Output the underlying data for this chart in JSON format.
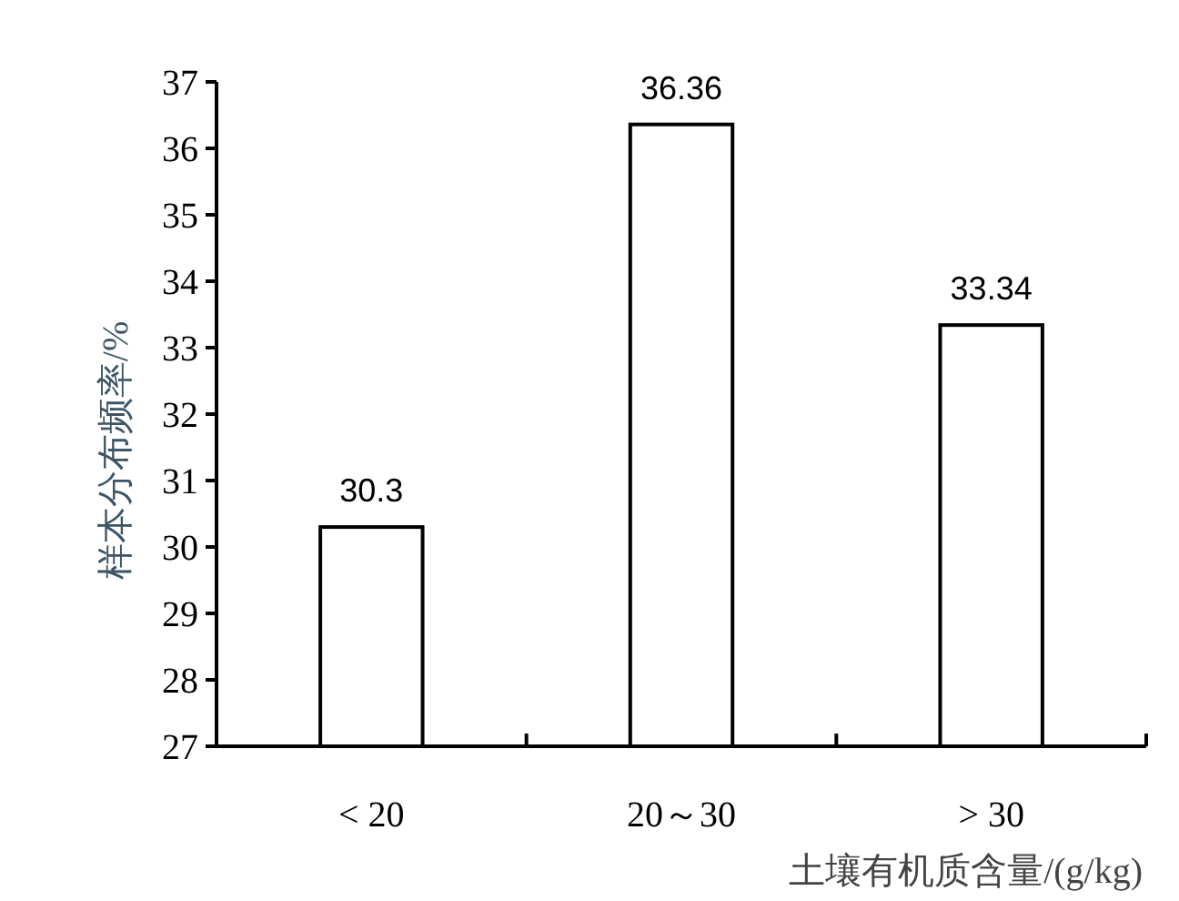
{
  "chart_data": {
    "type": "bar",
    "xlabel": "土壤有机质含量/(g/kg)",
    "ylabel": "样本分布频率/%",
    "categories": [
      "< 20",
      "20～30",
      "> 30"
    ],
    "values": [
      30.3,
      36.36,
      33.34
    ],
    "color": "#ffffff",
    "ylim": [
      27,
      37
    ],
    "yticks": [
      27,
      28,
      29,
      30,
      31,
      32,
      33,
      34,
      35,
      36,
      37
    ],
    "data_labels": true
  }
}
